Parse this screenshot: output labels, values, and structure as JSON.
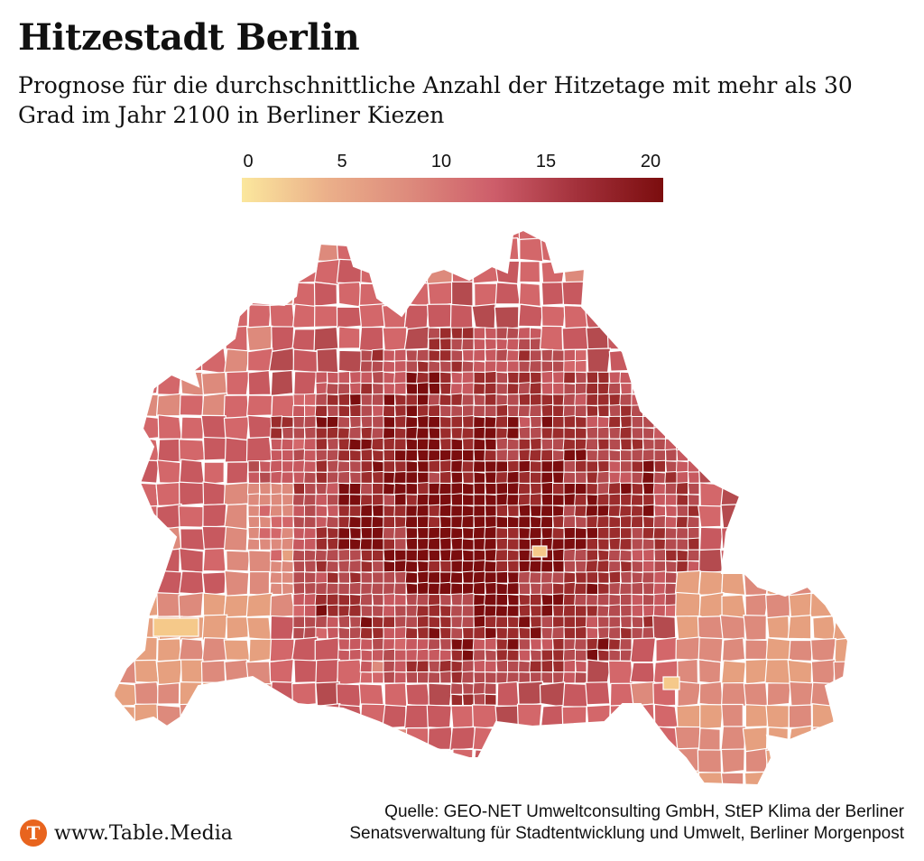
{
  "header": {
    "title": "Hitzestadt Berlin",
    "subtitle": "Prognose für die durchschnittliche Anzahl der Hitzetage mit mehr als 30 Grad im Jahr 2100 in Berliner Kiezen"
  },
  "legend": {
    "ticks": [
      "0",
      "5",
      "10",
      "15",
      "20"
    ],
    "min": 0,
    "max": 20,
    "colors": [
      "#fbe79d",
      "#ebb08a",
      "#dd8a7c",
      "#cd5d6a",
      "#a2303a",
      "#7b0d0e"
    ]
  },
  "map": {
    "region": "Berlin",
    "border_color": "#ffffff",
    "district_colors": {
      "very_high": "#7b0d0e",
      "high": "#9b2c2c",
      "mid_high": "#b44b4f",
      "mid": "#c7595f",
      "mid_low": "#d3676a",
      "low": "#dd8a7c",
      "very_low": "#e6a07f",
      "lowest": "#f5c98a"
    }
  },
  "footer": {
    "source_line1": "Quelle: GEO-NET Umweltconsulting GmbH, StEP Klima der Berliner",
    "source_line2": "Senatsverwaltung für Stadtentwicklung und Umwelt, Berliner Morgenpost",
    "brand_logo_letter": "T",
    "brand_text": "www.Table.Media"
  }
}
